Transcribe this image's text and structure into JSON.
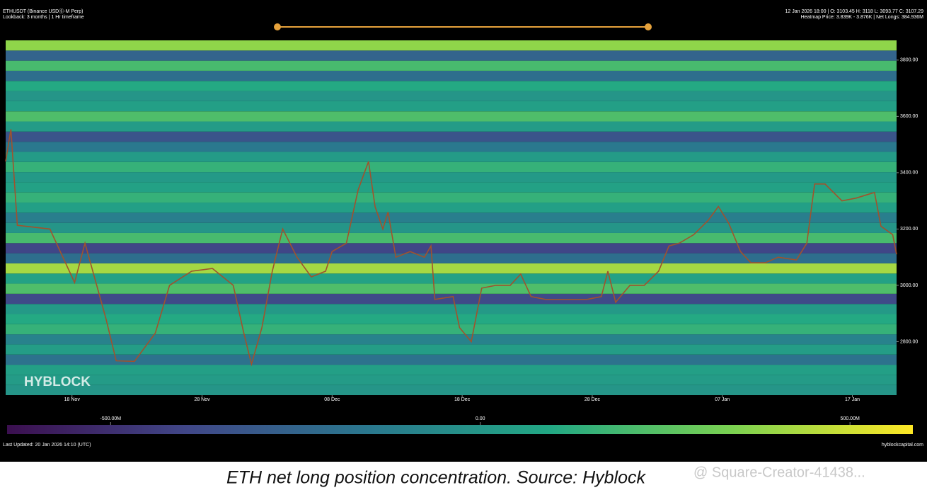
{
  "chart_data": {
    "type": "heatmap",
    "title": "ETHUSDT (Binance USDⓈ-M Perp)",
    "subtitle": "Lookback: 3 months | 1 Hr timeframe",
    "info": "12 Jan 2026 18:00 | O: 3103.45 H: 3118 L: 3093.77 C: 3107.29",
    "info2": "Heatmap Price: 3.839K - 3.876K | Net Longs: 384.936M",
    "ylim": [
      2610,
      3870
    ],
    "yticks": [
      {
        "value": 2800,
        "label": "2800.00"
      },
      {
        "value": 3000,
        "label": "3000.00"
      },
      {
        "value": 3200,
        "label": "3200.00"
      },
      {
        "value": 3400,
        "label": "3400.00"
      },
      {
        "value": 3600,
        "label": "3600.00"
      },
      {
        "value": 3800,
        "label": "3800.00"
      }
    ],
    "xlim": [
      0,
      68.5
    ],
    "xticks": [
      {
        "value": 5.1,
        "label": "18 Nov"
      },
      {
        "value": 15.1,
        "label": "28 Nov"
      },
      {
        "value": 25.1,
        "label": "08 Dec"
      },
      {
        "value": 35.1,
        "label": "18 Dec"
      },
      {
        "value": 45.1,
        "label": "28 Dec"
      },
      {
        "value": 55.1,
        "label": "07 Jan"
      },
      {
        "value": 65.1,
        "label": "17 Jan"
      }
    ],
    "y_bins": [
      2610,
      2646,
      2682,
      2718,
      2754,
      2790,
      2826,
      2862,
      2898,
      2934,
      2970,
      3006,
      3042,
      3078,
      3114,
      3150,
      3186,
      3222,
      3258,
      3294,
      3330,
      3366,
      3402,
      3438,
      3474,
      3510,
      3546,
      3582,
      3618,
      3654,
      3690,
      3726,
      3762,
      3798,
      3834,
      3870
    ],
    "values": [
      0,
      30,
      50,
      -180,
      40,
      -100,
      150,
      100,
      20,
      -380,
      220,
      60,
      420,
      -200,
      -400,
      200,
      0,
      -120,
      50,
      150,
      60,
      20,
      150,
      30,
      -150,
      -330,
      30,
      220,
      50,
      0,
      100,
      -200,
      200,
      -250,
      380
    ],
    "colorscale": [
      "#3b0f4f",
      "#404788",
      "#2a788e",
      "#22a884",
      "#7ad151",
      "#fde725"
    ],
    "clim": [
      -640,
      585
    ],
    "cbar_ticks": [
      {
        "value": -500,
        "label": "-500.00M"
      },
      {
        "value": 0,
        "label": "0.00"
      },
      {
        "value": 500,
        "label": "500.00M"
      }
    ],
    "price": {
      "color": "#a0522d",
      "x": [
        0,
        0.4,
        0.9,
        3.4,
        5.3,
        6.1,
        7.7,
        8.5,
        9.9,
        11.5,
        12.6,
        14.3,
        15.9,
        17.5,
        18.3,
        18.9,
        19.7,
        20.5,
        21.3,
        22.4,
        23.5,
        24.6,
        25.1,
        26.2,
        27.1,
        27.9,
        28.4,
        29.0,
        29.4,
        30.0,
        31.1,
        32.2,
        32.7,
        33.0,
        34.4,
        34.9,
        35.8,
        36.6,
        37.7,
        38.8,
        39.6,
        40.4,
        41.5,
        43.1,
        44.7,
        45.8,
        46.3,
        46.9,
        48.0,
        49.1,
        50.2,
        51.0,
        51.8,
        52.9,
        54.0,
        54.8,
        55.6,
        56.5,
        57.3,
        58.4,
        59.4,
        60.8,
        61.6,
        62.2,
        63.0,
        64.3,
        65.4,
        66.8,
        67.3,
        68.2,
        68.5
      ],
      "values": [
        3440,
        3554,
        3213,
        3200,
        3010,
        3150,
        2884,
        2732,
        2730,
        2830,
        3000,
        3050,
        3060,
        3000,
        2833,
        2720,
        2850,
        3050,
        3200,
        3100,
        3030,
        3050,
        3120,
        3150,
        3339,
        3440,
        3280,
        3200,
        3260,
        3100,
        3120,
        3100,
        3140,
        2950,
        2960,
        2850,
        2800,
        2990,
        3000,
        3000,
        3040,
        2960,
        2950,
        2950,
        2950,
        2960,
        3050,
        2940,
        3000,
        3000,
        3050,
        3140,
        3150,
        3180,
        3230,
        3280,
        3220,
        3120,
        3080,
        3080,
        3100,
        3090,
        3150,
        3360,
        3360,
        3300,
        3310,
        3330,
        3210,
        3180,
        3110
      ]
    }
  },
  "watermark": "HYBLOCK",
  "footer_left": "Last Updated: 20 Jan 2026 14:10 (UTC)",
  "footer_right": "hyblockcapital.com",
  "caption": "ETH net long position concentration. Source: Hyblock",
  "credit": "@ Square-Creator-41438..."
}
